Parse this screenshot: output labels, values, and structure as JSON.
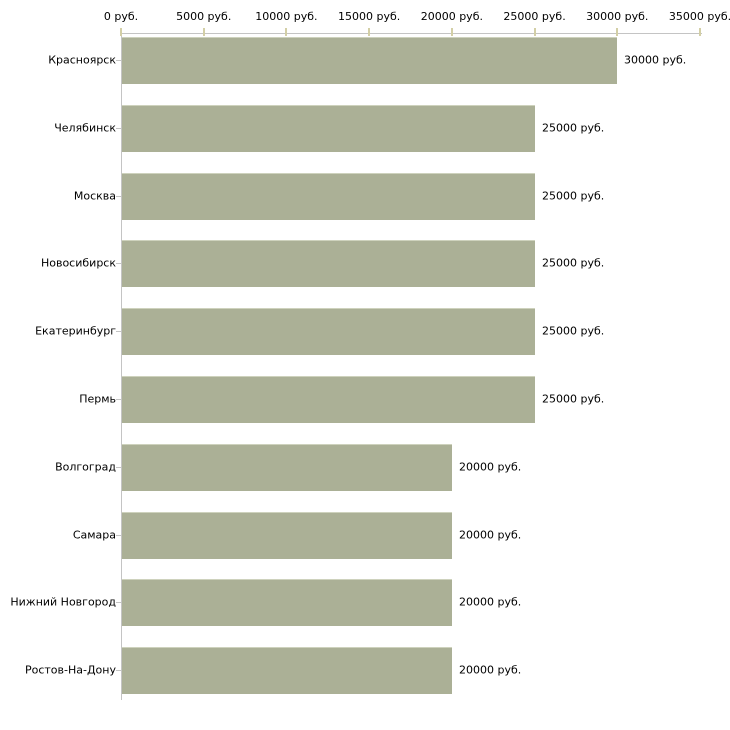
{
  "chart_data": {
    "type": "bar",
    "orientation": "horizontal",
    "title": "",
    "xlabel": "",
    "ylabel": "",
    "grid": false,
    "legend": false,
    "categories": [
      "Красноярск",
      "Челябинск",
      "Москва",
      "Новосибирск",
      "Екатеринбург",
      "Пермь",
      "Волгоград",
      "Самара",
      "Нижний Новгород",
      "Ростов-На-Дону"
    ],
    "values": [
      30000,
      25000,
      25000,
      25000,
      25000,
      25000,
      20000,
      20000,
      20000,
      20000
    ],
    "value_labels": [
      "30000 руб.",
      "25000 руб.",
      "25000 руб.",
      "25000 руб.",
      "25000 руб.",
      "25000 руб.",
      "20000 руб.",
      "20000 руб.",
      "20000 руб.",
      "20000 руб."
    ],
    "x_axis": {
      "position": "top",
      "min": 0,
      "max": 35000,
      "unit": "руб.",
      "ticks": [
        0,
        5000,
        10000,
        15000,
        20000,
        25000,
        30000,
        35000
      ],
      "tick_labels": [
        "0 руб.",
        "5000 руб.",
        "10000 руб.",
        "15000 руб.",
        "20000 руб.",
        "25000 руб.",
        "30000 руб.",
        "35000 руб."
      ]
    },
    "colors": {
      "bar": "#abb096",
      "bar_top_edge": "#ced2bd",
      "axis_line": "#c4c4c4",
      "tick_mark": "#d3cfa6",
      "text": "#000000",
      "background": "#ffffff"
    }
  }
}
